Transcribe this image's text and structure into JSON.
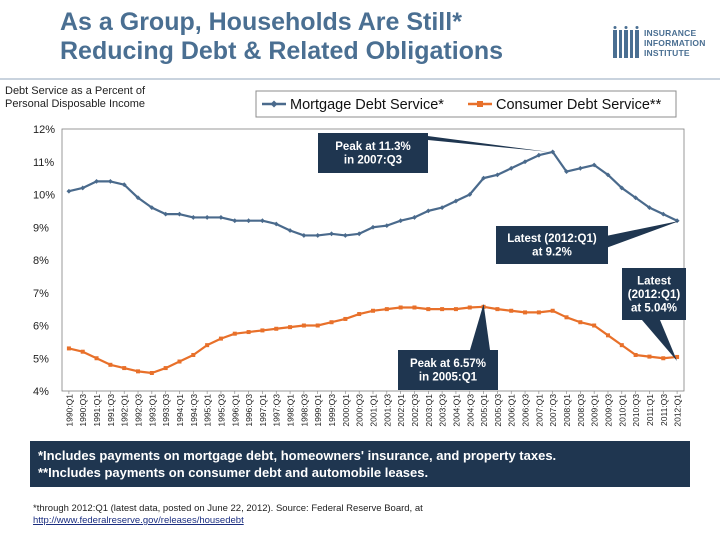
{
  "title_line1": "As a Group, Households Are Still*",
  "title_line2": "Reducing Debt & Related Obligations",
  "logo": {
    "line1": "INSURANCE",
    "line2": "INFORMATION",
    "line3": "INSTITUTE",
    "color": "#4a6f92"
  },
  "footnote": {
    "line1": "*Includes payments on mortgage debt, homeowners' insurance, and property taxes.",
    "line2": "**Includes payments on consumer debt and automobile leases."
  },
  "source": {
    "line1": "*through 2012:Q1 (latest data, posted on June 22, 2012). Source: Federal Reserve Board, at",
    "url": "http://www.federalreserve.gov/releases/housedebt"
  },
  "chart_data": {
    "type": "line",
    "ylabel_line1": "Debt Service as a Percent of",
    "ylabel_line2": "Personal Disposable Income",
    "ylim": [
      4,
      12
    ],
    "ytick_labels": [
      "4%",
      "5%",
      "6%",
      "7%",
      "8%",
      "9%",
      "10%",
      "11%",
      "12%"
    ],
    "categories": [
      "1990:Q1",
      "1990:Q3",
      "1991:Q1",
      "1991:Q3",
      "1992:Q1",
      "1992:Q3",
      "1993:Q1",
      "1993:Q3",
      "1994:Q1",
      "1994:Q3",
      "1995:Q1",
      "1995:Q3",
      "1996:Q1",
      "1996:Q3",
      "1997:Q1",
      "1997:Q3",
      "1998:Q1",
      "1998:Q3",
      "1999:Q1",
      "1999:Q3",
      "2000:Q1",
      "2000:Q3",
      "2001:Q1",
      "2001:Q3",
      "2002:Q1",
      "2002:Q3",
      "2003:Q1",
      "2003:Q3",
      "2004:Q1",
      "2004:Q3",
      "2005:Q1",
      "2005:Q3",
      "2006:Q1",
      "2006:Q3",
      "2007:Q1",
      "2007:Q3",
      "2008:Q1",
      "2008:Q3",
      "2009:Q1",
      "2009:Q3",
      "2010:Q1",
      "2010:Q3",
      "2011:Q1",
      "2011:Q3",
      "2012:Q1"
    ],
    "series": [
      {
        "name": "Mortgage Debt Service*",
        "color": "#4a6a8c",
        "values": [
          10.1,
          10.2,
          10.4,
          10.4,
          10.3,
          9.9,
          9.6,
          9.4,
          9.4,
          9.3,
          9.3,
          9.3,
          9.2,
          9.2,
          9.2,
          9.1,
          8.9,
          8.75,
          8.75,
          8.8,
          8.75,
          8.8,
          9.0,
          9.05,
          9.2,
          9.3,
          9.5,
          9.6,
          9.8,
          10.0,
          10.5,
          10.6,
          10.8,
          11.0,
          11.2,
          11.3,
          10.7,
          10.8,
          10.9,
          10.6,
          10.2,
          9.9,
          9.6,
          9.4,
          9.2
        ]
      },
      {
        "name": "Consumer Debt Service**",
        "color": "#e8702a",
        "values": [
          5.3,
          5.2,
          5.0,
          4.8,
          4.7,
          4.6,
          4.55,
          4.7,
          4.9,
          5.1,
          5.4,
          5.6,
          5.75,
          5.8,
          5.85,
          5.9,
          5.95,
          6.0,
          6.0,
          6.1,
          6.2,
          6.35,
          6.45,
          6.5,
          6.55,
          6.55,
          6.5,
          6.5,
          6.5,
          6.55,
          6.57,
          6.5,
          6.45,
          6.4,
          6.4,
          6.45,
          6.25,
          6.1,
          6.0,
          5.7,
          5.4,
          5.1,
          5.05,
          5.0,
          5.04
        ]
      }
    ],
    "annotations": [
      {
        "text_line1": "Peak at 11.3%",
        "text_line2": "in 2007:Q3",
        "target_index": 35,
        "series": 0
      },
      {
        "text_line1": "Latest (2012:Q1)",
        "text_line2": "at 9.2%",
        "target_index": 44,
        "series": 0
      },
      {
        "text_line1": "Latest",
        "text_line2": "(2012:Q1)",
        "text_line3": "at 5.04%",
        "target_index": 44,
        "series": 1
      },
      {
        "text_line1": "Peak at 6.57%",
        "text_line2": "in 2005:Q1",
        "target_index": 30,
        "series": 1
      }
    ]
  }
}
